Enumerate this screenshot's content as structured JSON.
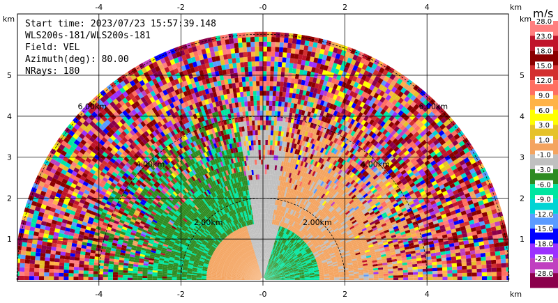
{
  "info": {
    "start_time": "Start time: 2023/07/23 15:57:39.148",
    "station": "WLS200s-181/WLS200s-181",
    "field": "Field: VEL",
    "azimuth": "Azimuth(deg): 80.00",
    "nrays": "NRays: 180"
  },
  "axis_unit": "km",
  "colorbar": {
    "unit": "m/s",
    "levels": [
      "28.0",
      "23.0",
      "18.0",
      "15.0",
      "12.0",
      "9.0",
      "6.0",
      "3.0",
      "1.0",
      "-1.0",
      "-3.0",
      "-6.0",
      "-9.0",
      "-12.0",
      "-15.0",
      "-18.0",
      "-23.0",
      "-28.0"
    ],
    "colors": [
      "#ff7f7f",
      "#c0142a",
      "#8b0000",
      "#d32f2f",
      "#ff6f61",
      "#ffb347",
      "#ffff00",
      "#e6c229",
      "#f4a460",
      "#c0c0c0",
      "#2e8b22",
      "#00e6a0",
      "#00d4d4",
      "#5b9bff",
      "#0000ff",
      "#9b30ff",
      "#c040c0",
      "#8b004b"
    ]
  },
  "chart_data": {
    "type": "heatmap",
    "title": "",
    "x_ticks": [
      "-4",
      "-2",
      "-0",
      "2",
      "4"
    ],
    "y_ticks": [
      "1",
      "2",
      "3",
      "4",
      "5"
    ],
    "xlim": [
      -6,
      6
    ],
    "ylim": [
      0,
      6
    ],
    "max_range_km": 6,
    "range_rings": [
      {
        "range_km": 2,
        "label": "2.00km"
      },
      {
        "range_km": 4,
        "label": "4.00km"
      },
      {
        "range_km": 6,
        "label": "6.00km"
      }
    ],
    "field": "VEL",
    "unit": "m/s"
  }
}
